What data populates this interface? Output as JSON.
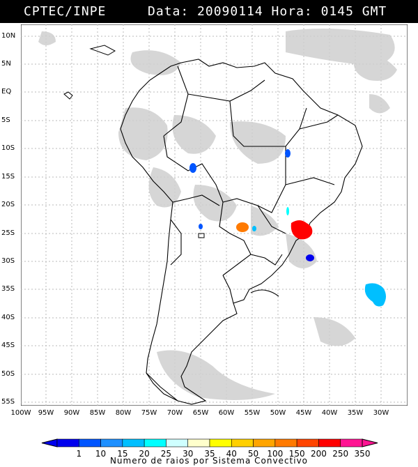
{
  "header": {
    "source": "CPTEC/INPE",
    "datetime": "Data: 20090114 Hora: 0145 GMT"
  },
  "map": {
    "lat_labels": [
      "10N",
      "5N",
      "EQ",
      "5S",
      "10S",
      "15S",
      "20S",
      "25S",
      "30S",
      "35S",
      "40S",
      "45S",
      "50S",
      "55S"
    ],
    "lon_labels": [
      "100W",
      "95W",
      "90W",
      "85W",
      "80W",
      "75W",
      "70W",
      "65W",
      "60W",
      "55W",
      "50W",
      "45W",
      "40W",
      "35W",
      "30W"
    ]
  },
  "legend": {
    "values": [
      "1",
      "10",
      "15",
      "20",
      "25",
      "30",
      "35",
      "40",
      "50",
      "100",
      "150",
      "200",
      "250",
      "350"
    ],
    "colors": [
      "#0000ee",
      "#0055ff",
      "#1e90ff",
      "#00bfff",
      "#00ffff",
      "#cfffff",
      "#ffffcc",
      "#ffff00",
      "#ffd000",
      "#ffa500",
      "#ff7a00",
      "#ff4500",
      "#ff0000",
      "#ff1493"
    ],
    "title": "Numero de raios por Sistema Convectivo"
  }
}
